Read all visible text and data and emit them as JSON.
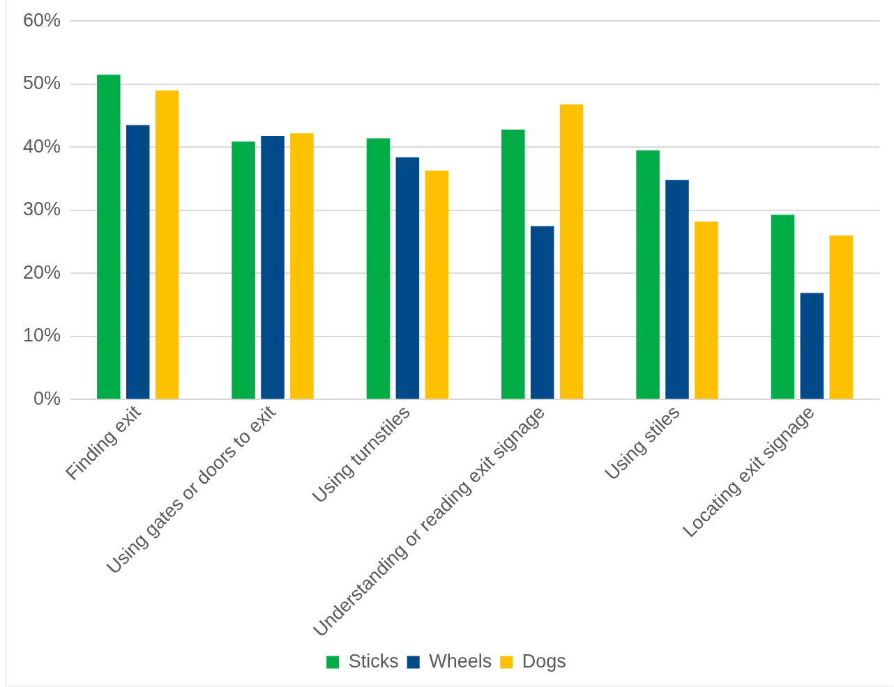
{
  "chart_data": {
    "type": "bar",
    "categories": [
      "Finding exit",
      "Using gates or doors to exit",
      "Using turnstiles",
      "Understanding or reading exit signage",
      "Using stiles",
      "Locating exit signage"
    ],
    "series": [
      {
        "name": "Sticks",
        "color": "#00ac46",
        "values": [
          51.5,
          40.9,
          41.4,
          42.8,
          39.5,
          29.3
        ]
      },
      {
        "name": "Wheels",
        "color": "#004a8a",
        "values": [
          43.5,
          41.8,
          38.4,
          27.5,
          34.8,
          16.9
        ]
      },
      {
        "name": "Dogs",
        "color": "#ffc000",
        "values": [
          49.0,
          42.2,
          36.3,
          46.8,
          28.2,
          26.0
        ]
      }
    ],
    "ylim": [
      0,
      60
    ],
    "yticks": [
      {
        "value": 0,
        "label": "0%"
      },
      {
        "value": 10,
        "label": "10%"
      },
      {
        "value": 20,
        "label": "20%"
      },
      {
        "value": 30,
        "label": "30%"
      },
      {
        "value": 40,
        "label": "40%"
      },
      {
        "value": 50,
        "label": "50%"
      },
      {
        "value": 60,
        "label": "60%"
      }
    ],
    "grid": "y",
    "legend": "bottom"
  }
}
